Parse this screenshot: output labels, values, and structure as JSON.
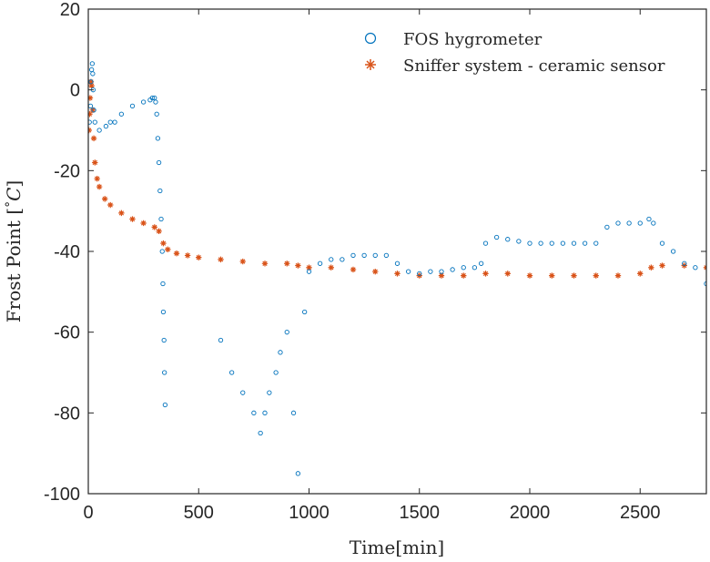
{
  "chart_data": {
    "type": "scatter",
    "title": "",
    "xlabel": "Time[min]",
    "ylabel": "Frost Point [°C]",
    "ylabel_parts": {
      "prefix": "Frost Point ",
      "lbracket": "[",
      "degree": "°",
      "unit": "C",
      "rbracket": "]"
    },
    "xlim": [
      0,
      2800
    ],
    "ylim": [
      -100,
      20
    ],
    "xticks": [
      0,
      500,
      1000,
      1500,
      2000,
      2500
    ],
    "xtick_labels": [
      "0",
      "500",
      "1000",
      "1500",
      "2000",
      "2500"
    ],
    "yticks": [
      -100,
      -80,
      -60,
      -40,
      -20,
      0,
      20
    ],
    "ytick_labels": [
      "-100",
      "-80",
      "-60",
      "-40",
      "-20",
      "0",
      "20"
    ],
    "legend_position": "top-right",
    "series": [
      {
        "name": "FOS hygrometer",
        "marker": "circle",
        "color": "#0072BD",
        "points": [
          [
            5,
            -8
          ],
          [
            10,
            -4
          ],
          [
            12,
            2
          ],
          [
            15,
            5
          ],
          [
            18,
            6.5
          ],
          [
            20,
            4
          ],
          [
            22,
            0
          ],
          [
            25,
            -5
          ],
          [
            30,
            -8
          ],
          [
            50,
            -10
          ],
          [
            80,
            -9
          ],
          [
            100,
            -8
          ],
          [
            120,
            -8
          ],
          [
            150,
            -6
          ],
          [
            200,
            -4
          ],
          [
            250,
            -3
          ],
          [
            280,
            -2.5
          ],
          [
            290,
            -2
          ],
          [
            300,
            -2
          ],
          [
            305,
            -3
          ],
          [
            310,
            -6
          ],
          [
            315,
            -12
          ],
          [
            320,
            -18
          ],
          [
            325,
            -25
          ],
          [
            330,
            -32
          ],
          [
            335,
            -40
          ],
          [
            338,
            -48
          ],
          [
            340,
            -55
          ],
          [
            343,
            -62
          ],
          [
            345,
            -70
          ],
          [
            348,
            -78
          ],
          [
            600,
            -62
          ],
          [
            650,
            -70
          ],
          [
            700,
            -75
          ],
          [
            750,
            -80
          ],
          [
            780,
            -85
          ],
          [
            800,
            -80
          ],
          [
            820,
            -75
          ],
          [
            850,
            -70
          ],
          [
            870,
            -65
          ],
          [
            900,
            -60
          ],
          [
            930,
            -80
          ],
          [
            950,
            -95
          ],
          [
            980,
            -55
          ],
          [
            1000,
            -45
          ],
          [
            1050,
            -43
          ],
          [
            1100,
            -42
          ],
          [
            1150,
            -42
          ],
          [
            1200,
            -41
          ],
          [
            1250,
            -41
          ],
          [
            1300,
            -41
          ],
          [
            1350,
            -41
          ],
          [
            1400,
            -43
          ],
          [
            1450,
            -45
          ],
          [
            1500,
            -45.5
          ],
          [
            1550,
            -45
          ],
          [
            1600,
            -45
          ],
          [
            1650,
            -44.5
          ],
          [
            1700,
            -44
          ],
          [
            1750,
            -44
          ],
          [
            1780,
            -43
          ],
          [
            1800,
            -38
          ],
          [
            1850,
            -36.5
          ],
          [
            1900,
            -37
          ],
          [
            1950,
            -37.5
          ],
          [
            2000,
            -38
          ],
          [
            2050,
            -38
          ],
          [
            2100,
            -38
          ],
          [
            2150,
            -38
          ],
          [
            2200,
            -38
          ],
          [
            2250,
            -38
          ],
          [
            2300,
            -38
          ],
          [
            2350,
            -34
          ],
          [
            2400,
            -33
          ],
          [
            2450,
            -33
          ],
          [
            2500,
            -33
          ],
          [
            2540,
            -32
          ],
          [
            2560,
            -33
          ],
          [
            2600,
            -38
          ],
          [
            2650,
            -40
          ],
          [
            2700,
            -43
          ],
          [
            2750,
            -44
          ],
          [
            2800,
            -48
          ]
        ]
      },
      {
        "name": "Sniffer system - ceramic sensor",
        "marker": "asterisk",
        "color": "#D95319",
        "points": [
          [
            3,
            -10
          ],
          [
            6,
            -6
          ],
          [
            8,
            -2
          ],
          [
            12,
            2
          ],
          [
            15,
            1
          ],
          [
            20,
            -5
          ],
          [
            25,
            -12
          ],
          [
            30,
            -18
          ],
          [
            40,
            -22
          ],
          [
            50,
            -24
          ],
          [
            75,
            -27
          ],
          [
            100,
            -28.5
          ],
          [
            150,
            -30.5
          ],
          [
            200,
            -32
          ],
          [
            250,
            -33
          ],
          [
            300,
            -34
          ],
          [
            320,
            -35
          ],
          [
            340,
            -38
          ],
          [
            360,
            -39.5
          ],
          [
            400,
            -40.5
          ],
          [
            450,
            -41
          ],
          [
            500,
            -41.5
          ],
          [
            600,
            -42
          ],
          [
            700,
            -42.5
          ],
          [
            800,
            -43
          ],
          [
            900,
            -43
          ],
          [
            950,
            -43.5
          ],
          [
            1000,
            -44
          ],
          [
            1100,
            -44
          ],
          [
            1200,
            -44.5
          ],
          [
            1300,
            -45
          ],
          [
            1400,
            -45.5
          ],
          [
            1500,
            -46
          ],
          [
            1600,
            -46
          ],
          [
            1700,
            -46
          ],
          [
            1800,
            -45.5
          ],
          [
            1900,
            -45.5
          ],
          [
            2000,
            -46
          ],
          [
            2100,
            -46
          ],
          [
            2200,
            -46
          ],
          [
            2300,
            -46
          ],
          [
            2400,
            -46
          ],
          [
            2500,
            -45.5
          ],
          [
            2550,
            -44
          ],
          [
            2600,
            -43.5
          ],
          [
            2700,
            -43.5
          ],
          [
            2800,
            -44
          ]
        ]
      }
    ]
  }
}
